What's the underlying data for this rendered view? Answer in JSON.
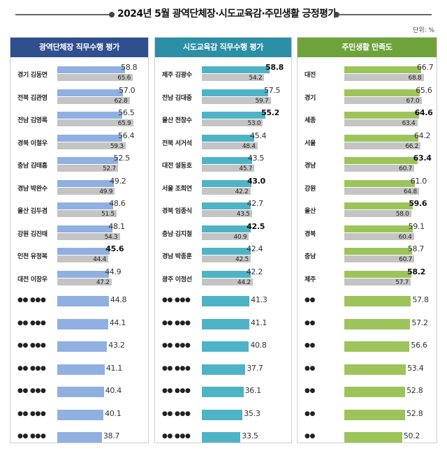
{
  "title": "2024년 5월 광역단체장·시도교육감·주민생활 긍정평가",
  "unit": "단위: %",
  "colors": {
    "governor": "#8fb0e0",
    "governor_header": "#2f4f8f",
    "superintendent": "#4fb3c6",
    "superintendent_header": "#2b8fa6",
    "resident": "#9cc45a",
    "resident_header": "#6ea33b",
    "previous": "#c4c4c4"
  },
  "chart_data": [
    {
      "type": "bar",
      "title": "광역단체장 직무수행 평가",
      "categories": [
        "경기 김동연",
        "전북 김관영",
        "전남 김영록",
        "경북 이철우",
        "충남 김태흠",
        "경남 박완수",
        "울산 김두겸",
        "강원 김진태",
        "인천 유정복",
        "대전 이장우",
        "●● ●●●",
        "●● ●●●",
        "●● ●●●",
        "●● ●●●",
        "●● ●●●",
        "●● ●●●",
        "●● ●●●"
      ],
      "series": [
        {
          "values": [
            58.8,
            57.0,
            56.5,
            56.4,
            52.5,
            49.2,
            48.6,
            48.1,
            45.6,
            44.9,
            44.8,
            44.1,
            43.2,
            41.1,
            40.4,
            40.1,
            38.7
          ]
        },
        {
          "values": [
            65.6,
            62.8,
            65.9,
            59.3,
            52.7,
            49.9,
            51.5,
            54.3,
            44.4,
            47.2,
            null,
            null,
            null,
            null,
            null,
            null,
            null
          ]
        }
      ],
      "xlim": [
        0,
        100
      ]
    },
    {
      "type": "bar",
      "title": "시도교육감 직무수행 평가",
      "categories": [
        "제주 김광수",
        "전남 김대중",
        "울산 천창수",
        "전북 서거석",
        "대전 설동호",
        "서울 조희연",
        "경북 임종식",
        "충남 김지철",
        "경남 박종훈",
        "광주 이정선",
        "●● ●●●",
        "●● ●●●",
        "●● ●●●",
        "●● ●●●",
        "●● ●●●",
        "●● ●●●",
        "●● ●●●"
      ],
      "series": [
        {
          "values": [
            58.8,
            57.5,
            55.2,
            45.4,
            43.5,
            43.0,
            42.7,
            42.5,
            42.4,
            42.2,
            41.3,
            41.1,
            40.8,
            37.7,
            36.1,
            35.3,
            33.5
          ]
        },
        {
          "values": [
            54.2,
            59.7,
            53.0,
            48.4,
            45.7,
            42.2,
            43.5,
            40.9,
            42.5,
            44.2,
            null,
            null,
            null,
            null,
            null,
            null,
            null
          ]
        }
      ],
      "xlim": [
        0,
        100
      ]
    },
    {
      "type": "bar",
      "title": "주민생활 만족도",
      "categories": [
        "대전",
        "경기",
        "세종",
        "서울",
        "경남",
        "강원",
        "울산",
        "경북",
        "충남",
        "제주",
        "●●",
        "●●",
        "●●",
        "●●",
        "●●",
        "●●",
        "●●"
      ],
      "series": [
        {
          "values": [
            66.7,
            65.6,
            64.6,
            64.2,
            63.4,
            61.0,
            59.6,
            59.1,
            58.7,
            58.2,
            57.8,
            57.2,
            56.6,
            53.4,
            52.8,
            52.8,
            50.2
          ]
        },
        {
          "values": [
            68.8,
            67.0,
            63.4,
            66.2,
            60.7,
            64.8,
            58.0,
            60.4,
            60.7,
            57.7,
            null,
            null,
            null,
            null,
            null,
            null,
            null
          ]
        }
      ],
      "xlim": [
        0,
        100
      ]
    }
  ]
}
